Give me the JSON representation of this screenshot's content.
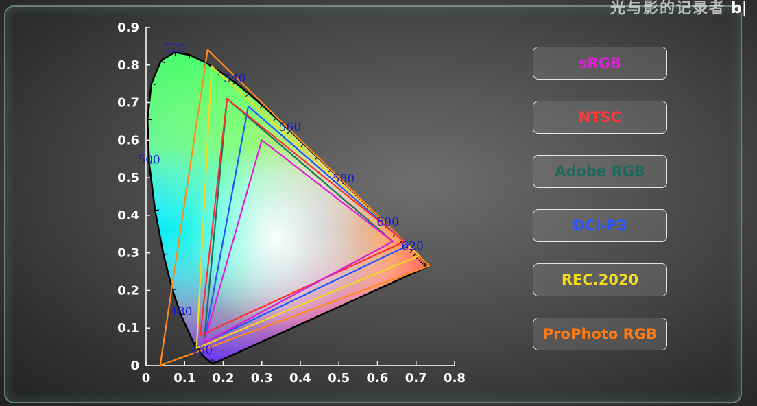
{
  "watermark": "光与影的记录者",
  "chart_data": {
    "type": "scatter",
    "xlim": [
      0,
      0.8
    ],
    "ylim": [
      0,
      0.9
    ],
    "x_ticks": [
      "0",
      "0.1",
      "0.2",
      "0.3",
      "0.4",
      "0.5",
      "0.6",
      "0.7",
      "0.8"
    ],
    "y_ticks": [
      "0",
      "0.1",
      "0.2",
      "0.3",
      "0.4",
      "0.5",
      "0.6",
      "0.7",
      "0.8",
      "0.9"
    ],
    "wavelength_labels": [
      {
        "text": "460",
        "x": 0.144,
        "y": 0.03
      },
      {
        "text": "480",
        "x": 0.091,
        "y": 0.133
      },
      {
        "text": "500",
        "x": 0.008,
        "y": 0.538
      },
      {
        "text": "520",
        "x": 0.074,
        "y": 0.834
      },
      {
        "text": "540",
        "x": 0.23,
        "y": 0.754
      },
      {
        "text": "560",
        "x": 0.373,
        "y": 0.624
      },
      {
        "text": "580",
        "x": 0.512,
        "y": 0.487
      },
      {
        "text": "600",
        "x": 0.627,
        "y": 0.372
      },
      {
        "text": "620",
        "x": 0.691,
        "y": 0.308
      }
    ],
    "series": [
      {
        "name": "sRGB",
        "color": "#e020d8",
        "points": [
          [
            0.64,
            0.33
          ],
          [
            0.3,
            0.6
          ],
          [
            0.15,
            0.06
          ]
        ]
      },
      {
        "name": "NTSC",
        "color": "#ff3030",
        "points": [
          [
            0.67,
            0.33
          ],
          [
            0.21,
            0.71
          ],
          [
            0.14,
            0.08
          ]
        ]
      },
      {
        "name": "Adobe RGB",
        "color": "#1a6f5f",
        "points": [
          [
            0.64,
            0.33
          ],
          [
            0.21,
            0.71
          ],
          [
            0.15,
            0.06
          ]
        ]
      },
      {
        "name": "DCI-P3",
        "color": "#2255ff",
        "points": [
          [
            0.68,
            0.32
          ],
          [
            0.265,
            0.69
          ],
          [
            0.15,
            0.06
          ]
        ]
      },
      {
        "name": "REC.2020",
        "color": "#f5d820",
        "points": [
          [
            0.708,
            0.292
          ],
          [
            0.17,
            0.797
          ],
          [
            0.131,
            0.046
          ]
        ]
      },
      {
        "name": "ProPhoto RGB",
        "color": "#ff8a1a",
        "points": [
          [
            0.7347,
            0.2653
          ],
          [
            0.1596,
            0.8404
          ],
          [
            0.0366,
            0.0001
          ]
        ]
      }
    ],
    "locus": [
      [
        0.1741,
        0.005
      ],
      [
        0.1738,
        0.0049
      ],
      [
        0.1666,
        0.0089
      ],
      [
        0.144,
        0.0297
      ],
      [
        0.1241,
        0.0578
      ],
      [
        0.0913,
        0.1327
      ],
      [
        0.0687,
        0.2007
      ],
      [
        0.0454,
        0.295
      ],
      [
        0.0235,
        0.4127
      ],
      [
        0.0082,
        0.5384
      ],
      [
        0.0039,
        0.6548
      ],
      [
        0.0139,
        0.7502
      ],
      [
        0.0389,
        0.812
      ],
      [
        0.0743,
        0.8338
      ],
      [
        0.1142,
        0.8262
      ],
      [
        0.1547,
        0.8059
      ],
      [
        0.1929,
        0.7816
      ],
      [
        0.2296,
        0.7543
      ],
      [
        0.2658,
        0.7243
      ],
      [
        0.3016,
        0.6923
      ],
      [
        0.3373,
        0.6589
      ],
      [
        0.3731,
        0.6245
      ],
      [
        0.4087,
        0.5896
      ],
      [
        0.4441,
        0.5547
      ],
      [
        0.4788,
        0.5202
      ],
      [
        0.5125,
        0.4866
      ],
      [
        0.5448,
        0.4544
      ],
      [
        0.5752,
        0.4242
      ],
      [
        0.6029,
        0.3965
      ],
      [
        0.627,
        0.3725
      ],
      [
        0.6482,
        0.3514
      ],
      [
        0.6658,
        0.334
      ],
      [
        0.6801,
        0.3197
      ],
      [
        0.6915,
        0.3083
      ],
      [
        0.7006,
        0.2993
      ],
      [
        0.7079,
        0.292
      ],
      [
        0.714,
        0.2859
      ],
      [
        0.719,
        0.2809
      ],
      [
        0.723,
        0.277
      ],
      [
        0.726,
        0.274
      ],
      [
        0.7283,
        0.2717
      ],
      [
        0.73,
        0.27
      ],
      [
        0.7311,
        0.2689
      ],
      [
        0.732,
        0.268
      ],
      [
        0.7327,
        0.2673
      ],
      [
        0.7334,
        0.2666
      ],
      [
        0.734,
        0.266
      ],
      [
        0.7344,
        0.2656
      ],
      [
        0.7346,
        0.2654
      ],
      [
        0.7347,
        0.2653
      ]
    ]
  },
  "legend": [
    {
      "label": "sRGB",
      "color": "#e020d8"
    },
    {
      "label": "NTSC",
      "color": "#ff3a3a"
    },
    {
      "label": "Adobe RGB",
      "color": "#1d6a5c"
    },
    {
      "label": "DCI-P3",
      "color": "#2a55ff"
    },
    {
      "label": "REC.2020",
      "color": "#f5d820"
    },
    {
      "label": "ProPhoto RGB",
      "color": "#ff7a12"
    }
  ]
}
